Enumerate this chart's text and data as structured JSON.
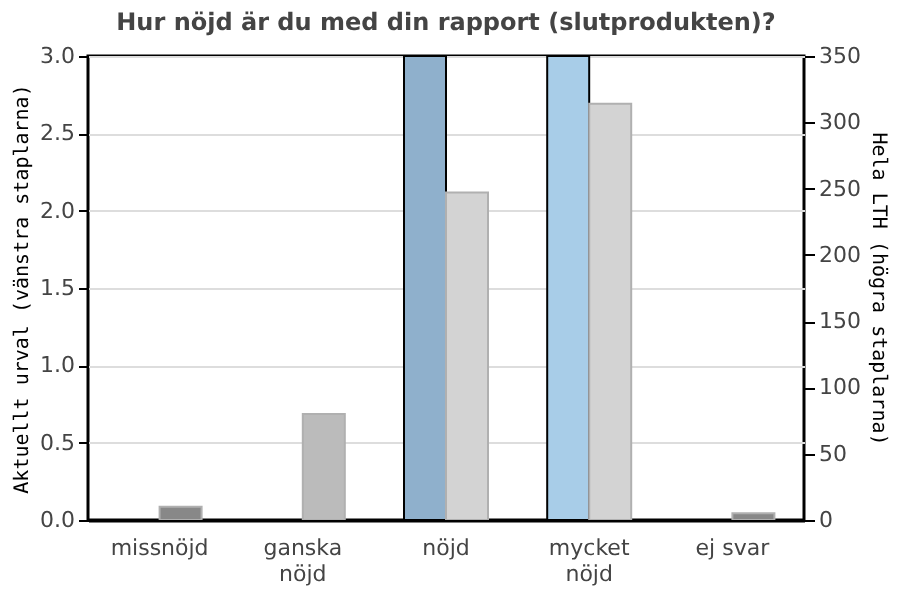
{
  "chart_data": {
    "type": "bar",
    "title": "Hur nöjd är du med din rapport (slutprodukten)?",
    "categories": [
      "missnöjd",
      "ganska nöjd",
      "nöjd",
      "mycket nöjd",
      "ej svar"
    ],
    "ylabel": "Aktuellt urval (vänstra staplarna)",
    "y2label": "Hela LTH (högra staplarna)",
    "series": [
      {
        "colors": [
          "#8fb0cc",
          "#8fb0cc",
          "#8fb0cc",
          "#a8cde8",
          "#a8cde8"
        ],
        "values": [
          null,
          null,
          3.0,
          3.0,
          null
        ]
      },
      {
        "axis": "y2",
        "colors": [
          "#888888",
          "#bbbbbb",
          "#d3d3d3",
          "#d3d3d3",
          "#888888"
        ],
        "values": [
          10,
          80,
          247,
          314,
          5
        ]
      }
    ],
    "ylim": [
      0,
      3.0
    ],
    "yticks": [
      {
        "value": 0,
        "label": "0.0"
      },
      0.5,
      {
        "value": 1,
        "label": "1.0"
      },
      1.5,
      {
        "value": 2,
        "label": "2.0"
      },
      2.5,
      {
        "value": 3,
        "label": "3.0"
      }
    ],
    "y2lim": [
      0,
      350
    ],
    "y2ticks": [
      0,
      50,
      100,
      150,
      200,
      250,
      300,
      350
    ],
    "grid": "y"
  }
}
